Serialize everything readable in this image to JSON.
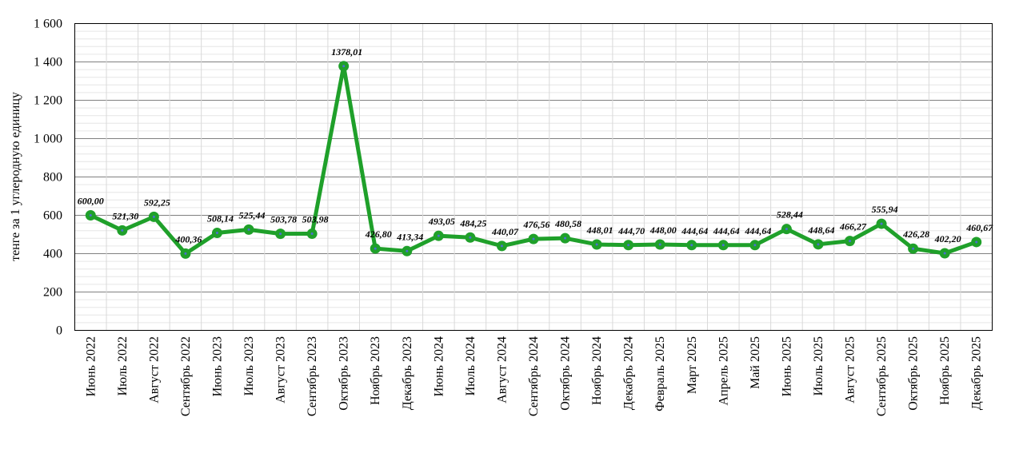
{
  "chart_data": {
    "type": "line",
    "title": "",
    "xlabel": "",
    "ylabel": "тенге за 1 углеродную единицу",
    "ylim": [
      0,
      1600
    ],
    "yticks": [
      0,
      200,
      400,
      600,
      800,
      1000,
      1200,
      1400,
      1600
    ],
    "ytick_labels": [
      "0",
      "200",
      "400",
      "600",
      "800",
      "1 000",
      "1 200",
      "1 400",
      "1 600"
    ],
    "grid": true,
    "legend": "none",
    "line_color": "#1fa02a",
    "marker_center_color": "#4a6fd0",
    "categories": [
      "Июнь 2022",
      "Июль 2022",
      "Август 2022",
      "Сентябрь 2022",
      "Июнь 2023",
      "Июль 2023",
      "Август 2023",
      "Сентябрь 2023",
      "Октябрь 2023",
      "Ноябрь 2023",
      "Декабрь 2023",
      "Июнь 2024",
      "Июль 2024",
      "Август 2024",
      "Сентябрь 2024",
      "Октябрь 2024",
      "Ноябрь 2024",
      "Декабрь 2024",
      "Февраль 2025",
      "Март 2025",
      "Апрель 2025",
      "Май 2025",
      "Июнь 2025",
      "Июль 2025",
      "Август 2025",
      "Сентябрь 2025",
      "Октябрь 2025",
      "Ноябрь 2025",
      "Декабрь 2025"
    ],
    "values": [
      600.0,
      521.3,
      592.25,
      400.36,
      508.14,
      525.44,
      503.78,
      503.98,
      1378.01,
      426.8,
      413.34,
      493.05,
      484.25,
      440.07,
      476.56,
      480.58,
      448.01,
      444.7,
      448.0,
      444.64,
      444.64,
      444.64,
      528.44,
      448.64,
      466.27,
      555.94,
      426.28,
      402.2,
      460.67
    ],
    "data_labels": [
      "600,00",
      "521,30",
      "592,25",
      "400,36",
      "508,14",
      "525,44",
      "503,78",
      "503,98",
      "1378,01",
      "426,80",
      "413,34",
      "493,05",
      "484,25",
      "440,07",
      "476,56",
      "480,58",
      "448,01",
      "444,70",
      "448,00",
      "444,64",
      "444,64",
      "444,64",
      "528,44",
      "448,64",
      "466,27",
      "555,94",
      "426,28",
      "402,20",
      "460,67"
    ]
  }
}
